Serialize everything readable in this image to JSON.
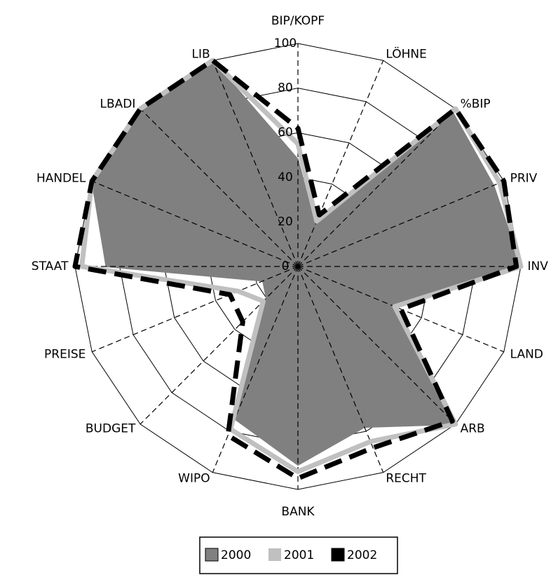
{
  "chart_data": {
    "type": "radar",
    "categories": [
      "BIP/KOPF",
      "LÖHNE",
      "%BIP",
      "PRIV",
      "INV",
      "LAND",
      "ARB",
      "RECHT",
      "BANK",
      "WIPO",
      "BUDGET",
      "PREISE",
      "STAAT",
      "HANDEL",
      "LBADI",
      "LIB"
    ],
    "series": [
      {
        "name": "2000",
        "color": "#808080",
        "values": [
          48,
          20,
          98,
          95,
          100,
          45,
          100,
          78,
          89,
          74,
          20,
          17,
          86,
          100,
          100,
          100
        ]
      },
      {
        "name": "2001",
        "color": "#c0c0c0",
        "values": [
          55,
          22,
          100,
          98,
          100,
          47,
          100,
          85,
          92,
          79,
          22,
          29,
          97,
          100,
          100,
          100
        ]
      },
      {
        "name": "2002",
        "color": "#000000",
        "values": [
          62,
          25,
          100,
          100,
          98,
          50,
          98,
          88,
          95,
          82,
          35,
          33,
          100,
          100,
          100,
          100
        ]
      }
    ],
    "rlim": [
      0,
      100
    ],
    "rticks": [
      0,
      20,
      40,
      60,
      80,
      100
    ],
    "legend": "bottom"
  }
}
